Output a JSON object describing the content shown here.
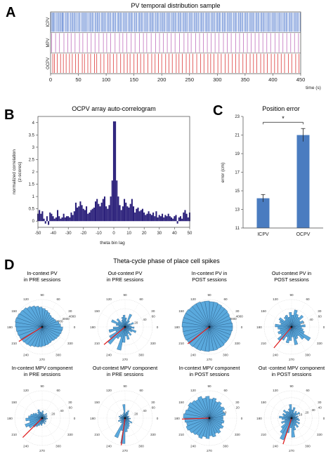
{
  "panels": {
    "A": {
      "letter": "A"
    },
    "B": {
      "letter": "B"
    },
    "C": {
      "letter": "C"
    },
    "D": {
      "letter": "D",
      "title": "Theta-cycle phase of place cell spikes"
    }
  },
  "chart_data": [
    {
      "id": "A",
      "type": "raster",
      "title": "PV temporal distribution sample",
      "xlabel": "time (s)",
      "xlim": [
        0,
        450
      ],
      "xticks": [
        0,
        50,
        100,
        150,
        200,
        250,
        300,
        350,
        400,
        450
      ],
      "series": [
        {
          "name": "ICPV",
          "color": "#6d8fd6",
          "events": [
            1,
            3,
            5,
            6,
            8,
            11,
            13,
            15,
            17,
            19,
            21,
            22,
            24,
            27,
            29,
            31,
            33,
            36,
            38,
            40,
            42,
            44,
            46,
            49,
            51,
            53,
            56,
            58,
            60,
            62,
            64,
            66,
            69,
            71,
            73,
            75,
            77,
            80,
            82,
            84,
            86,
            88,
            91,
            93,
            95,
            97,
            99,
            102,
            104,
            106,
            108,
            111,
            113,
            115,
            117,
            120,
            122,
            124,
            126,
            128,
            131,
            133,
            135,
            137,
            140,
            142,
            144,
            146,
            148,
            151,
            153,
            155,
            158,
            160,
            162,
            164,
            166,
            169,
            171,
            173,
            175,
            178,
            180,
            182,
            184,
            186,
            189,
            191,
            193,
            195,
            198,
            200,
            202,
            204,
            206,
            209,
            211,
            213,
            215,
            218,
            220,
            222,
            224,
            226,
            229,
            231,
            233,
            235,
            238,
            240,
            242,
            244,
            246,
            249,
            251,
            253,
            255,
            258,
            260,
            262,
            264,
            266,
            269,
            271,
            273,
            275,
            278,
            280,
            282,
            284,
            286,
            289,
            291,
            293,
            295,
            298,
            300,
            302,
            304,
            306,
            309,
            311,
            313,
            315,
            318,
            320,
            322,
            324,
            326,
            329,
            331,
            333,
            335,
            338,
            340,
            342,
            344,
            346,
            349,
            351,
            353,
            355,
            358,
            360,
            362,
            364,
            366,
            369,
            371,
            373,
            375,
            378,
            380,
            382,
            384,
            386,
            389,
            391,
            393,
            395,
            398,
            400,
            402,
            404,
            406,
            409,
            411,
            413,
            415,
            418,
            420,
            422,
            424,
            426,
            429,
            431,
            433,
            435,
            438,
            440,
            442,
            444,
            446,
            449
          ]
        },
        {
          "name": "MPV",
          "color": "#c77fc4",
          "events": [
            2,
            9,
            16,
            24,
            31,
            37,
            44,
            52,
            58,
            66,
            73,
            80,
            87,
            95,
            101,
            108,
            116,
            124,
            130,
            137,
            145,
            152,
            160,
            167,
            173,
            181,
            189,
            196,
            203,
            210,
            217,
            224,
            232,
            240,
            247,
            253,
            261,
            268,
            275,
            282,
            289,
            296,
            303,
            311,
            318,
            325,
            333,
            340,
            347,
            354,
            361,
            368,
            375,
            382,
            389,
            396,
            404,
            411,
            418,
            425,
            432,
            439,
            446
          ]
        },
        {
          "name": "OCPV",
          "color": "#e05050",
          "events": [
            4,
            7,
            12,
            18,
            23,
            28,
            34,
            39,
            45,
            50,
            57,
            61,
            67,
            72,
            79,
            83,
            90,
            96,
            103,
            107,
            113,
            119,
            126,
            132,
            138,
            143,
            150,
            156,
            162,
            168,
            175,
            182,
            188,
            194,
            200,
            207,
            213,
            219,
            226,
            231,
            237,
            244,
            250,
            256,
            263,
            270,
            276,
            283,
            288,
            294,
            301,
            307,
            314,
            320,
            327,
            333,
            339,
            346,
            352,
            359,
            365,
            371,
            378,
            384,
            390,
            397,
            403,
            409,
            415,
            421,
            428,
            434,
            441,
            447
          ]
        }
      ]
    },
    {
      "id": "B",
      "type": "bar",
      "title": "OCPV array auto-correlogram",
      "xlabel": "theta bin lag",
      "ylabel": "normalized correlation\n(z-scores)",
      "xlim": [
        -50,
        50
      ],
      "ylim": [
        -0.25,
        4.25
      ],
      "xticks": [
        -50,
        -40,
        -30,
        -20,
        -10,
        0,
        10,
        20,
        30,
        40,
        50
      ],
      "yticks": [
        0,
        0.5,
        1,
        1.5,
        2,
        2.5,
        3,
        3.5,
        4
      ],
      "ytick_labels": [
        "0",
        "0.5",
        "1",
        "1.5",
        "2",
        "2.5",
        "3",
        "3.5",
        "4"
      ],
      "x": [
        -50,
        -49,
        -48,
        -47,
        -46,
        -45,
        -44,
        -43,
        -42,
        -41,
        -40,
        -39,
        -38,
        -37,
        -36,
        -35,
        -34,
        -33,
        -32,
        -31,
        -30,
        -29,
        -28,
        -27,
        -26,
        -25,
        -24,
        -23,
        -22,
        -21,
        -20,
        -19,
        -18,
        -17,
        -16,
        -15,
        -14,
        -13,
        -12,
        -11,
        -10,
        -9,
        -8,
        -7,
        -6,
        -5,
        -4,
        -3,
        -2,
        -1,
        0,
        1,
        2,
        3,
        4,
        5,
        6,
        7,
        8,
        9,
        10,
        11,
        12,
        13,
        14,
        15,
        16,
        17,
        18,
        19,
        20,
        21,
        22,
        23,
        24,
        25,
        26,
        27,
        28,
        29,
        30,
        31,
        32,
        33,
        34,
        35,
        36,
        37,
        38,
        39,
        40,
        41,
        42,
        43,
        44,
        45,
        46,
        47,
        48,
        49,
        50
      ],
      "values": [
        0.3,
        0.45,
        0.3,
        0.4,
        0.1,
        -0.1,
        0.2,
        -0.15,
        0.35,
        0.3,
        0.2,
        0.1,
        0.15,
        0.45,
        0.2,
        0.1,
        0.15,
        0.3,
        0.15,
        0.2,
        0.2,
        0.15,
        0.35,
        0.25,
        0.4,
        0.75,
        0.55,
        0.6,
        0.8,
        0.65,
        0.5,
        0.45,
        0.6,
        0.3,
        0.35,
        0.45,
        0.5,
        0.55,
        0.8,
        0.9,
        0.7,
        0.6,
        0.75,
        0.9,
        1.0,
        0.6,
        0.5,
        0.65,
        1.0,
        1.65,
        4.05,
        4.05,
        1.65,
        1.0,
        0.65,
        0.45,
        0.6,
        0.9,
        0.75,
        0.6,
        0.55,
        0.7,
        0.9,
        0.6,
        0.35,
        0.5,
        0.55,
        0.4,
        0.45,
        0.5,
        0.35,
        0.25,
        0.3,
        0.4,
        0.3,
        0.25,
        0.35,
        0.2,
        0.4,
        0.15,
        0.25,
        0.2,
        0.3,
        0.15,
        0.25,
        0.2,
        0.3,
        0.2,
        0.15,
        0.1,
        0.2,
        0.25,
        -0.1,
        0.15,
        0.2,
        0.1,
        0.35,
        0.45,
        0.3,
        0.15,
        0.35
      ],
      "color": "#2a1f7a"
    },
    {
      "id": "C",
      "type": "bar",
      "title": "Position error",
      "ylabel": "error (cm)",
      "categories": [
        "ICPV",
        "OCPV"
      ],
      "values": [
        14.2,
        21.0
      ],
      "errors": [
        0.4,
        0.7
      ],
      "ylim": [
        11,
        23
      ],
      "yticks": [
        11,
        13,
        15,
        17,
        19,
        21,
        23
      ],
      "significance": "*",
      "color": "#4a7cc0"
    },
    {
      "id": "D",
      "type": "polar-histogram",
      "title": "Theta-cycle phase of place cell spikes",
      "color": "#5aa9dd",
      "mean_color": "#e02020",
      "angle_labels": [
        {
          "angle": 90,
          "text": "90"
        },
        {
          "angle": 60,
          "text": "60"
        },
        {
          "angle": 30,
          "text": "30"
        },
        {
          "angle": 0,
          "text": "0"
        },
        {
          "angle": 330,
          "text": "330"
        },
        {
          "angle": 300,
          "text": "300"
        },
        {
          "angle": 270,
          "text": "270"
        },
        {
          "angle": 240,
          "text": "240"
        },
        {
          "angle": 210,
          "text": "210"
        },
        {
          "angle": 180,
          "text": "180"
        },
        {
          "angle": 150,
          "text": "150"
        },
        {
          "angle": 120,
          "text": "120"
        }
      ],
      "plots": [
        {
          "title": "In-context PV\nin PRE sessions",
          "rmax": 4000,
          "rticks": [
            1000,
            2000,
            3000,
            4000
          ],
          "mean_angle": 212,
          "values": [
            2700,
            2500,
            2200,
            2100,
            2000,
            2100,
            2300,
            2500,
            2700,
            2900,
            3100,
            3300,
            3500,
            3700,
            3800,
            3900,
            4000,
            3900,
            3800,
            3700,
            3600,
            3500,
            3400,
            3300,
            3100,
            3000,
            2900,
            2800,
            2700,
            2600,
            2500,
            2600,
            2700,
            2800,
            2900,
            3000
          ]
        },
        {
          "title": "Out-context PV\nin PRE sessions",
          "rmax": 60,
          "rticks": [
            20,
            40,
            60
          ],
          "mean_angle": 220,
          "values": [
            14,
            10,
            20,
            12,
            8,
            16,
            30,
            12,
            20,
            26,
            22,
            16,
            12,
            24,
            18,
            32,
            20,
            14,
            26,
            36,
            22,
            40,
            50,
            30,
            24,
            52,
            34,
            20,
            28,
            16,
            22,
            12,
            18,
            26,
            14,
            20
          ]
        },
        {
          "title": "In-context PV in\nPOST sessions",
          "rmax": 4000,
          "rticks": [
            1000,
            2000,
            3000,
            4000
          ],
          "mean_angle": 218,
          "values": [
            3400,
            3300,
            3300,
            3400,
            3500,
            3500,
            3600,
            3700,
            3700,
            3800,
            3800,
            3900,
            3900,
            3900,
            4000,
            4000,
            4000,
            4000,
            3900,
            3900,
            3900,
            3800,
            3800,
            3700,
            3700,
            3600,
            3600,
            3500,
            3500,
            3400,
            3400,
            3300,
            3300,
            3300,
            3300,
            3400
          ]
        },
        {
          "title": "Out-context PV in\nPOST sessions",
          "rmax": 60,
          "rticks": [
            20,
            40,
            60
          ],
          "mean_angle": 230,
          "values": [
            30,
            20,
            28,
            22,
            34,
            26,
            30,
            38,
            26,
            32,
            22,
            28,
            26,
            20,
            32,
            28,
            24,
            36,
            30,
            26,
            32,
            28,
            40,
            34,
            24,
            36,
            30,
            22,
            40,
            28,
            24,
            36,
            48,
            30,
            26,
            22
          ]
        },
        {
          "title": "In-context MPV component\nin PRE sessions",
          "rmax": 60,
          "rticks": [
            20,
            40,
            60
          ],
          "mean_angle": 225,
          "values": [
            10,
            6,
            12,
            8,
            14,
            6,
            10,
            8,
            16,
            12,
            14,
            20,
            16,
            12,
            18,
            22,
            26,
            30,
            36,
            28,
            40,
            34,
            26,
            22,
            18,
            14,
            16,
            12,
            10,
            14,
            8,
            12,
            6,
            10,
            8,
            12
          ]
        },
        {
          "title": "Out-context MPV component\nin PRE sessions",
          "rmax": 60,
          "rticks": [
            20,
            40,
            60
          ],
          "mean_angle": 262,
          "values": [
            8,
            6,
            10,
            8,
            6,
            12,
            18,
            14,
            10,
            30,
            12,
            8,
            10,
            6,
            12,
            8,
            14,
            10,
            12,
            8,
            16,
            10,
            14,
            12,
            46,
            28,
            56,
            30,
            24,
            20,
            16,
            12,
            18,
            10,
            8,
            12
          ]
        },
        {
          "title": "In-context MPV component\nin POST sessions",
          "rmax": 20,
          "rticks": [
            10,
            20
          ],
          "mean_angle": 182,
          "values": [
            10,
            12,
            11,
            13,
            12,
            14,
            13,
            15,
            14,
            16,
            15,
            17,
            16,
            17,
            18,
            17,
            18,
            19,
            18,
            17,
            18,
            17,
            16,
            15,
            16,
            14,
            15,
            13,
            14,
            12,
            13,
            11,
            12,
            10,
            11,
            10
          ]
        },
        {
          "title": "Out -context MPV component\nin POST sessions",
          "rmax": 40,
          "rticks": [
            10,
            20,
            30,
            40
          ],
          "mean_angle": 252,
          "values": [
            8,
            10,
            6,
            14,
            10,
            12,
            8,
            16,
            12,
            20,
            14,
            10,
            12,
            16,
            10,
            14,
            12,
            18,
            14,
            10,
            16,
            12,
            20,
            26,
            34,
            22,
            14,
            28,
            18,
            12,
            16,
            10,
            14,
            8,
            12,
            10
          ]
        }
      ]
    }
  ]
}
